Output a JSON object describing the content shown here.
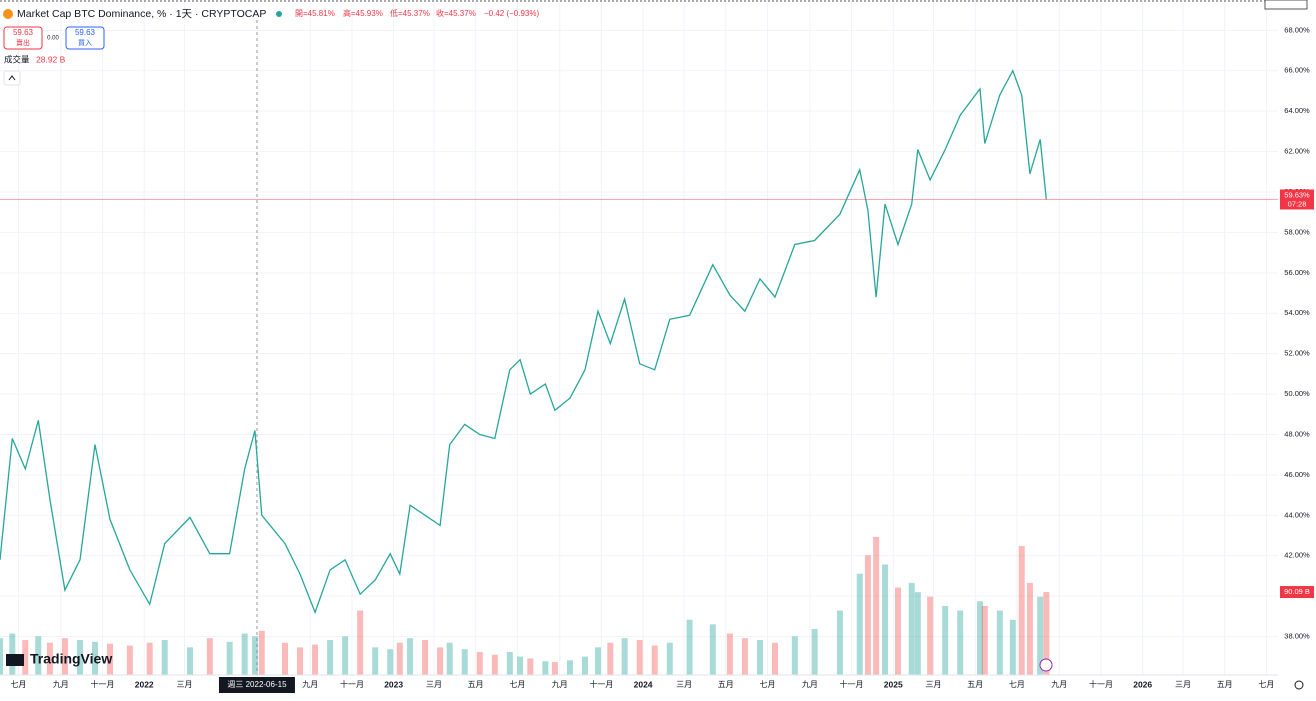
{
  "header": {
    "symbol": "Market Cap BTC Dominance, % · 1天 · CRYPTOCAP",
    "open": "開=45.81%",
    "high": "高=45.93%",
    "low": "低=45.37%",
    "close": "收=45.37%",
    "change": "−0.42 (−0.93%)",
    "sell_price": "59.63",
    "sell": "賣出",
    "spread": "0.00",
    "buy_price": "59.63",
    "buy": "買入",
    "volume_label": "成交量",
    "volume_value": "28.92 B",
    "logo": "TradingView",
    "crosshair": "週三 2022-06-15"
  },
  "chart_data": {
    "type": "line",
    "x": [
      "2021-06-04",
      "2021-06-22",
      "2021-07-11",
      "2021-07-30",
      "2021-08-16",
      "2021-09-07",
      "2021-09-29",
      "2021-10-21",
      "2021-11-12",
      "2021-12-11",
      "2022-01-09",
      "2022-01-31",
      "2022-03-09",
      "2022-04-07",
      "2022-05-06",
      "2022-05-28",
      "2022-06-12",
      "2022-06-22",
      "2022-07-26",
      "2022-08-17",
      "2022-09-08",
      "2022-09-30",
      "2022-10-22",
      "2022-11-13",
      "2022-12-05",
      "2022-12-27",
      "2023-01-10",
      "2023-01-25",
      "2023-02-16",
      "2023-03-10",
      "2023-03-24",
      "2023-04-15",
      "2023-05-07",
      "2023-05-29",
      "2023-06-20",
      "2023-07-05",
      "2023-07-20",
      "2023-08-11",
      "2023-08-25",
      "2023-09-16",
      "2023-10-08",
      "2023-10-27",
      "2023-11-14",
      "2023-12-05",
      "2023-12-27",
      "2024-01-18",
      "2024-02-09",
      "2024-03-09",
      "2024-04-12",
      "2024-05-07",
      "2024-05-29",
      "2024-06-20",
      "2024-07-12",
      "2024-08-10",
      "2024-09-08",
      "2024-10-15",
      "2024-11-13",
      "2024-11-25",
      "2024-12-07",
      "2024-12-20",
      "2025-01-08",
      "2025-01-28",
      "2025-02-06",
      "2025-02-24",
      "2025-03-18",
      "2025-04-09",
      "2025-05-08",
      "2025-05-15",
      "2025-06-06",
      "2025-06-25",
      "2025-07-08",
      "2025-07-20",
      "2025-08-04",
      "2025-08-13"
    ],
    "series": [
      {
        "name": "BTC Dominance",
        "color": "#26a69a",
        "down_color": "#ef5350",
        "values": [
          41.8,
          47.8,
          46.3,
          48.7,
          44.8,
          40.3,
          41.8,
          47.5,
          43.8,
          41.3,
          39.6,
          42.6,
          43.9,
          42.1,
          42.1,
          46.3,
          48.2,
          44.0,
          42.6,
          41.1,
          39.2,
          41.3,
          41.8,
          40.1,
          40.8,
          42.1,
          41.1,
          44.5,
          44.0,
          43.5,
          47.5,
          48.5,
          48.0,
          47.8,
          51.2,
          51.7,
          50.0,
          50.5,
          49.2,
          49.8,
          51.2,
          54.1,
          52.5,
          54.7,
          51.5,
          51.2,
          53.7,
          53.9,
          56.4,
          54.9,
          54.1,
          55.7,
          54.8,
          57.4,
          57.6,
          58.9,
          61.1,
          59.1,
          54.8,
          59.4,
          57.4,
          59.4,
          62.1,
          60.6,
          62.1,
          63.8,
          65.1,
          62.4,
          64.8,
          66.0,
          64.8,
          60.9,
          62.6,
          59.63
        ]
      },
      {
        "name": "成交量",
        "axis": "y2",
        "values": [
          40,
          45,
          38,
          42,
          35,
          40,
          38,
          36,
          34,
          32,
          35,
          38,
          30,
          40,
          36,
          45,
          42,
          48,
          35,
          30,
          33,
          38,
          42,
          70,
          30,
          28,
          35,
          40,
          38,
          30,
          35,
          28,
          25,
          22,
          25,
          20,
          18,
          15,
          14,
          16,
          20,
          30,
          35,
          40,
          38,
          32,
          35,
          60,
          55,
          45,
          40,
          38,
          35,
          42,
          50,
          70,
          110,
          130,
          150,
          120,
          95,
          100,
          90,
          85,
          75,
          70,
          80,
          75,
          70,
          60,
          140,
          100,
          85,
          90.09
        ]
      }
    ],
    "price_label": "59.63%",
    "countdown": "07:28",
    "volume_last_label": "90.09 B",
    "xlim": [
      "2021-06-04",
      "2026-07-18"
    ],
    "xticks": [
      {
        "value": "2021-07-01",
        "label": "七月"
      },
      {
        "value": "2021-09-01",
        "label": "九月"
      },
      {
        "value": "2021-11-01",
        "label": "十一月"
      },
      {
        "value": "2022-01-01",
        "label": "2022"
      },
      {
        "value": "2022-03-01",
        "label": "三月"
      },
      {
        "value": "2022-09-01",
        "label": "九月"
      },
      {
        "value": "2022-11-01",
        "label": "十一月"
      },
      {
        "value": "2023-01-01",
        "label": "2023"
      },
      {
        "value": "2023-03-01",
        "label": "三月"
      },
      {
        "value": "2023-05-01",
        "label": "五月"
      },
      {
        "value": "2023-07-01",
        "label": "七月"
      },
      {
        "value": "2023-09-01",
        "label": "九月"
      },
      {
        "value": "2023-11-01",
        "label": "十一月"
      },
      {
        "value": "2024-01-01",
        "label": "2024"
      },
      {
        "value": "2024-03-01",
        "label": "三月"
      },
      {
        "value": "2024-05-01",
        "label": "五月"
      },
      {
        "value": "2024-07-01",
        "label": "七月"
      },
      {
        "value": "2024-09-01",
        "label": "九月"
      },
      {
        "value": "2024-11-01",
        "label": "十一月"
      },
      {
        "value": "2025-01-01",
        "label": "2025"
      },
      {
        "value": "2025-03-01",
        "label": "三月"
      },
      {
        "value": "2025-05-01",
        "label": "五月"
      },
      {
        "value": "2025-07-01",
        "label": "七月"
      },
      {
        "value": "2025-09-01",
        "label": "九月"
      },
      {
        "value": "2025-11-01",
        "label": "十一月"
      },
      {
        "value": "2026-01-01",
        "label": "2026"
      },
      {
        "value": "2026-03-01",
        "label": "三月"
      },
      {
        "value": "2026-05-01",
        "label": "五月"
      },
      {
        "value": "2026-07-01",
        "label": "七月"
      }
    ],
    "ylim": [
      36.1,
      69.5
    ],
    "yticks": [
      {
        "value": 38,
        "label": "38.00%"
      },
      {
        "value": 40,
        "label": "40.00%"
      },
      {
        "value": 42,
        "label": "42.00%"
      },
      {
        "value": 44,
        "label": "44.00%"
      },
      {
        "value": 46,
        "label": "46.00%"
      },
      {
        "value": 48,
        "label": "48.00%"
      },
      {
        "value": 50,
        "label": "50.00%"
      },
      {
        "value": 52,
        "label": "52.00%"
      },
      {
        "value": 54,
        "label": "54.00%"
      },
      {
        "value": 56,
        "label": "56.00%"
      },
      {
        "value": 58,
        "label": "58.00%"
      },
      {
        "value": 60,
        "label": "60.00%"
      },
      {
        "value": 62,
        "label": "62.00%"
      },
      {
        "value": 64,
        "label": "64.00%"
      },
      {
        "value": 66,
        "label": "66.00%"
      },
      {
        "value": 68,
        "label": "68.00%"
      }
    ],
    "y2lim": [
      0,
      733
    ],
    "grid": true
  }
}
